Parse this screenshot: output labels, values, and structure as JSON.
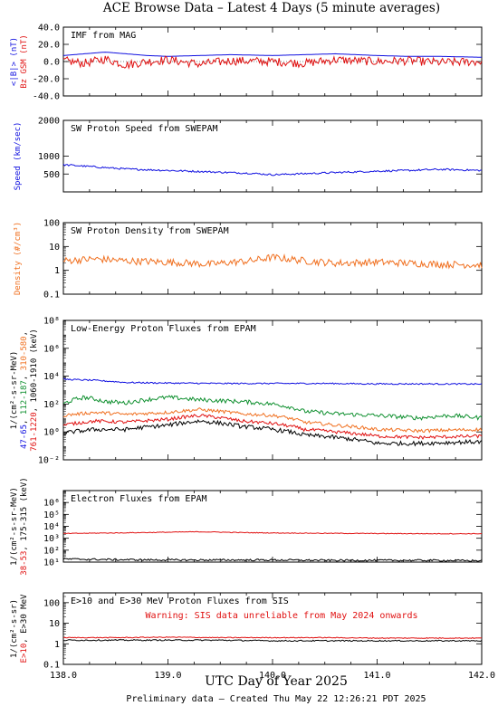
{
  "page": {
    "title": "ACE Browse Data – Latest 4 Days (5 minute averages)",
    "x_axis_label": "UTC Day of Year 2025",
    "footer": "Preliminary data – Created Thu May 22 12:26:21 PDT 2025",
    "x_ticks": [
      "138.0",
      "139.0",
      "140.0",
      "141.0",
      "142.0"
    ]
  },
  "colors": {
    "blue": "#1010e0",
    "red": "#e01010",
    "orange": "#f07020",
    "green": "#109030",
    "black": "#000000"
  },
  "chart_data": [
    {
      "type": "line",
      "title": "IMF from MAG",
      "ylabels": [
        {
          "text": "<|B|> (nT)",
          "color": "blue"
        },
        {
          "text": "Bz GSM (nT)",
          "color": "red"
        }
      ],
      "ylim": [
        -40,
        40
      ],
      "log": false,
      "yticks": [
        "40.0",
        "20.0",
        "0.0",
        "-20.0",
        "-40.0"
      ],
      "xlim": [
        138.0,
        142.0
      ],
      "series": [
        {
          "color": "blue",
          "x": [
            138.0,
            138.2,
            138.4,
            138.6,
            138.8,
            139.0,
            139.3,
            139.6,
            140.0,
            140.3,
            140.6,
            141.0,
            141.3,
            141.6,
            142.0
          ],
          "y": [
            7,
            9,
            11,
            9,
            7,
            6,
            7,
            8,
            7,
            8,
            9,
            7,
            6,
            6,
            5
          ]
        },
        {
          "color": "red",
          "x": [
            138.0,
            138.2,
            138.4,
            138.6,
            138.8,
            139.0,
            139.3,
            139.6,
            140.0,
            140.3,
            140.6,
            141.0,
            141.3,
            141.6,
            142.0
          ],
          "y": [
            1,
            -2,
            3,
            -4,
            0,
            2,
            -3,
            1,
            0,
            -2,
            2,
            0,
            1,
            -1,
            0
          ],
          "noise": 5
        }
      ]
    },
    {
      "type": "line",
      "title": "SW Proton Speed from SWEPAM",
      "ylabels": [
        {
          "text": "Speed (km/sec)",
          "color": "blue"
        }
      ],
      "ylim": [
        0,
        2000
      ],
      "log": false,
      "yticks": [
        "2000",
        "1000",
        "500"
      ],
      "yticks_values": [
        2000,
        1000,
        500
      ],
      "xlim": [
        138.0,
        142.0
      ],
      "series": [
        {
          "color": "blue",
          "x": [
            138.0,
            138.3,
            138.6,
            139.0,
            139.4,
            139.8,
            140.0,
            140.3,
            140.6,
            141.0,
            141.3,
            141.6,
            142.0
          ],
          "y": [
            760,
            700,
            640,
            600,
            560,
            520,
            480,
            510,
            540,
            580,
            600,
            630,
            600
          ],
          "noise": 25
        }
      ]
    },
    {
      "type": "line",
      "title": "SW Proton Density from SWEPAM",
      "ylabels": [
        {
          "text": "Density (#/cm³)",
          "color": "orange"
        }
      ],
      "ylim": [
        0.1,
        100
      ],
      "log": true,
      "yticks": [
        "100",
        "10",
        "1",
        "0.1"
      ],
      "yticks_values": [
        100,
        10,
        1,
        0.1
      ],
      "xlim": [
        138.0,
        142.0
      ],
      "series": [
        {
          "color": "orange",
          "x": [
            138.0,
            138.3,
            138.6,
            139.0,
            139.4,
            139.8,
            140.0,
            140.3,
            140.6,
            141.0,
            141.3,
            141.6,
            142.0
          ],
          "y": [
            2.5,
            3.0,
            2.5,
            2.2,
            1.8,
            2.5,
            3.5,
            2.5,
            2.0,
            2.2,
            2.0,
            1.8,
            1.7
          ],
          "noise": 0.15
        }
      ]
    },
    {
      "type": "line",
      "title": "Low-Energy Proton Fluxes from EPAM",
      "ylabels": [
        {
          "text": "1/(cm²-s-sr-MeV)",
          "color": "black"
        },
        {
          "text": "47-65, 112-187, 310-580,",
          "color": "mixed"
        },
        {
          "text": "761-1220, 1060-1910 (keV)",
          "color": "mixed"
        }
      ],
      "ylim": [
        0.01,
        100000000
      ],
      "log": true,
      "yticks": [
        "10⁸",
        "10⁶",
        "10⁴",
        "10²",
        "10⁰",
        "10⁻²"
      ],
      "yticks_values": [
        100000000,
        1000000,
        10000,
        100,
        1,
        0.01
      ],
      "xlim": [
        138.0,
        142.0
      ],
      "series": [
        {
          "name": "47-65",
          "color": "blue",
          "x": [
            138.0,
            138.3,
            138.6,
            139.0,
            139.5,
            140.0,
            140.5,
            141.0,
            141.5,
            142.0
          ],
          "y": [
            6000,
            5000,
            3500,
            3200,
            3000,
            3000,
            3000,
            2800,
            2800,
            2700
          ],
          "noise": 0.05
        },
        {
          "name": "112-187",
          "color": "green",
          "x": [
            138.0,
            138.2,
            138.4,
            138.6,
            139.0,
            139.3,
            139.7,
            140.0,
            140.3,
            140.6,
            141.0,
            141.4,
            141.7,
            142.0
          ],
          "y": [
            100,
            300,
            150,
            120,
            300,
            200,
            150,
            100,
            30,
            20,
            15,
            10,
            15,
            10
          ],
          "noise": 0.15
        },
        {
          "name": "310-580",
          "color": "orange",
          "x": [
            138.0,
            138.3,
            138.6,
            139.0,
            139.3,
            139.7,
            140.0,
            140.3,
            140.6,
            141.0,
            141.4,
            142.0
          ],
          "y": [
            15,
            25,
            18,
            25,
            40,
            20,
            15,
            5,
            3,
            1.5,
            1.2,
            1.5
          ],
          "noise": 0.12
        },
        {
          "name": "761-1220",
          "color": "red",
          "x": [
            138.0,
            138.3,
            138.6,
            139.0,
            139.3,
            139.7,
            140.0,
            140.3,
            140.6,
            141.0,
            141.4,
            142.0
          ],
          "y": [
            3,
            6,
            5,
            8,
            15,
            6,
            4,
            1.5,
            1,
            0.5,
            0.4,
            0.5
          ],
          "noise": 0.12
        },
        {
          "name": "1060-1910",
          "color": "black",
          "x": [
            138.0,
            138.3,
            138.6,
            139.0,
            139.3,
            139.7,
            140.0,
            140.3,
            140.6,
            141.0,
            141.4,
            142.0
          ],
          "y": [
            0.8,
            1.5,
            1.5,
            3,
            6,
            2.5,
            1.5,
            0.6,
            0.4,
            0.15,
            0.15,
            0.2
          ],
          "noise": 0.15
        }
      ]
    },
    {
      "type": "line",
      "title": "Electron Fluxes from EPAM",
      "ylabels": [
        {
          "text": "1/(cm²-s-sr-MeV)",
          "color": "black"
        },
        {
          "text": "38-53, 175-315 (keV)",
          "color": "mixed"
        }
      ],
      "ylim": [
        10,
        10000000
      ],
      "log": true,
      "yticks": [
        "10⁶",
        "10⁵",
        "10⁴",
        "10³",
        "10²",
        "10¹"
      ],
      "yticks_values": [
        1000000,
        100000,
        10000,
        1000,
        100,
        10
      ],
      "xlim": [
        138.0,
        142.0
      ],
      "series": [
        {
          "name": "38-53",
          "color": "red",
          "x": [
            138.0,
            138.5,
            139.0,
            139.3,
            139.7,
            140.0,
            140.5,
            141.0,
            141.5,
            142.0
          ],
          "y": [
            2500,
            2800,
            3200,
            3500,
            3000,
            2800,
            2600,
            2500,
            2400,
            2400
          ],
          "noise": 0.03
        },
        {
          "name": "175-315",
          "color": "black",
          "x": [
            138.0,
            138.5,
            139.0,
            139.5,
            140.0,
            140.5,
            141.0,
            141.5,
            142.0
          ],
          "y": [
            18,
            16,
            15,
            15,
            15,
            14,
            14,
            14,
            13
          ],
          "noise": 0.08
        }
      ]
    },
    {
      "type": "line",
      "title": "E>10 and E>30 MeV Proton Fluxes from SIS",
      "annotation": "Warning: SIS data unreliable from May 2024 onwards",
      "ylabels": [
        {
          "text": "1/(cm²-s-sr)",
          "color": "black"
        },
        {
          "text": "E>10, E>30 MeV",
          "color": "mixed"
        }
      ],
      "ylim": [
        0.1,
        300
      ],
      "log": true,
      "yticks": [
        "100",
        "10",
        "1",
        "0.1"
      ],
      "yticks_values": [
        100,
        10,
        1,
        0.1
      ],
      "xlim": [
        138.0,
        142.0
      ],
      "series": [
        {
          "name": "E>10",
          "color": "red",
          "x": [
            138.0,
            138.5,
            139.0,
            139.5,
            140.0,
            140.5,
            141.0,
            141.5,
            142.0
          ],
          "y": [
            2.0,
            2.0,
            2.1,
            2.0,
            2.0,
            2.0,
            1.9,
            1.9,
            1.9
          ],
          "noise": 0.02
        },
        {
          "name": "E>30",
          "color": "black",
          "x": [
            138.0,
            138.5,
            139.0,
            139.5,
            140.0,
            140.5,
            141.0,
            141.5,
            142.0
          ],
          "y": [
            1.5,
            1.5,
            1.5,
            1.5,
            1.4,
            1.4,
            1.4,
            1.4,
            1.4
          ],
          "noise": 0.03
        }
      ]
    }
  ]
}
